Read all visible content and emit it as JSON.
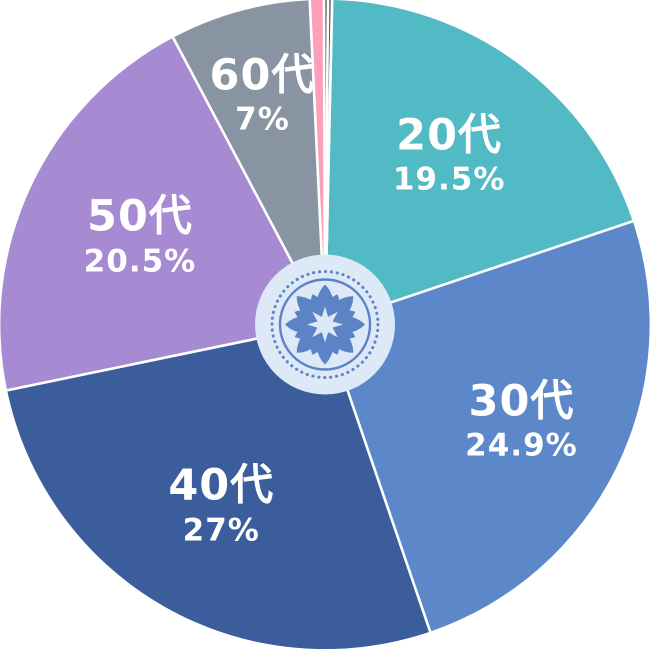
{
  "page": {
    "background_color": "#ffffff"
  },
  "chart_data": {
    "type": "pie",
    "direction": "clockwise",
    "start_angle_deg": 1.26,
    "slice_border_color": "#ffffff",
    "text_color": "#ffffff",
    "center_icon": {
      "name": "lotus-mandala-badge",
      "background_color": "#dde9f6",
      "foreground_color": "#5b83c6"
    },
    "slices": [
      {
        "label": "20代",
        "pct_label": "19.5%",
        "value": 19.5,
        "color": "#52bac5"
      },
      {
        "label": "30代",
        "pct_label": "24.9%",
        "value": 24.9,
        "color": "#5c88c9"
      },
      {
        "label": "40代",
        "pct_label": "27%",
        "value": 27.0,
        "color": "#3b5d9b"
      },
      {
        "label": "50代",
        "pct_label": "20.5%",
        "value": 20.5,
        "color": "#a78bd2"
      },
      {
        "label": "60代",
        "pct_label": "7%",
        "value": 7.0,
        "color": "#8894a1"
      },
      {
        "label": "",
        "pct_label": "",
        "value": 0.7,
        "color": "#fc9fb9"
      },
      {
        "label": "",
        "pct_label": "",
        "value": 0.2,
        "color": "#51626c"
      },
      {
        "label": "",
        "pct_label": "",
        "value": 0.2,
        "color": "#44565f"
      }
    ]
  }
}
